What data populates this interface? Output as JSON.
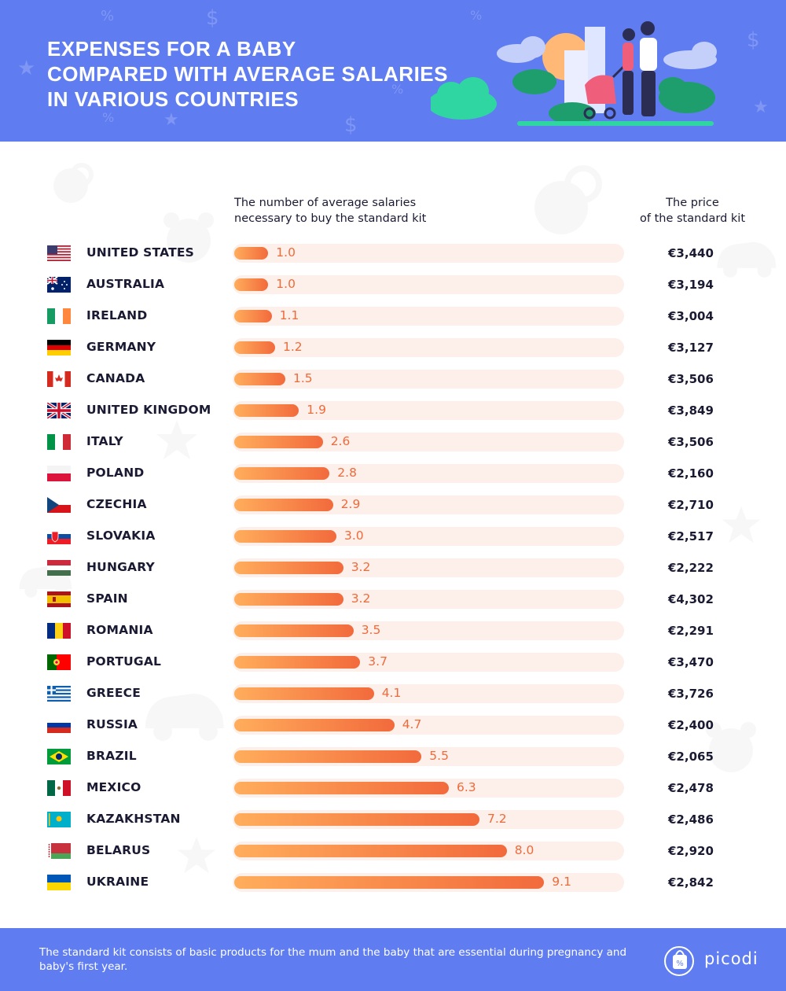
{
  "header": {
    "title_lines": [
      "EXPENSES FOR A BABY",
      "COMPARED WITH AVERAGE SALARIES",
      "IN VARIOUS COUNTRIES"
    ],
    "background_color": "#5f7df0"
  },
  "columns": {
    "salaries_header_lines": [
      "The number of average salaries",
      "necessary to buy the standard kit"
    ],
    "price_header_lines": [
      "The price",
      "of the standard kit"
    ]
  },
  "chart_data": {
    "type": "bar",
    "orientation": "horizontal",
    "title": "EXPENSES FOR A BABY COMPARED WITH AVERAGE SALARIES IN VARIOUS COUNTRIES",
    "categories": [
      "UNITED STATES",
      "AUSTRALIA",
      "IRELAND",
      "GERMANY",
      "CANADA",
      "UNITED KINGDOM",
      "ITALY",
      "POLAND",
      "CZECHIA",
      "SLOVAKIA",
      "HUNGARY",
      "SPAIN",
      "ROMANIA",
      "PORTUGAL",
      "GREECE",
      "RUSSIA",
      "BRAZIL",
      "MEXICO",
      "KAZAKHSTAN",
      "BELARUS",
      "UKRAINE"
    ],
    "values": [
      1.0,
      1.0,
      1.1,
      1.2,
      1.5,
      1.9,
      2.6,
      2.8,
      2.9,
      3.0,
      3.2,
      3.2,
      3.5,
      3.7,
      4.1,
      4.7,
      5.5,
      6.3,
      7.2,
      8.0,
      9.1
    ],
    "value_labels": [
      "1.0",
      "1.0",
      "1.1",
      "1.2",
      "1.5",
      "1.9",
      "2.6",
      "2.8",
      "2.9",
      "3.0",
      "3.2",
      "3.2",
      "3.5",
      "3.7",
      "4.1",
      "4.7",
      "5.5",
      "6.3",
      "7.2",
      "8.0",
      "9.1"
    ],
    "prices": [
      "€3,440",
      "€3,194",
      "€3,004",
      "€3,127",
      "€3,506",
      "€3,849",
      "€3,506",
      "€2,160",
      "€2,710",
      "€2,517",
      "€2,222",
      "€4,302",
      "€2,291",
      "€3,470",
      "€3,726",
      "€2,400",
      "€2,065",
      "€2,478",
      "€2,486",
      "€2,920",
      "€2,842"
    ],
    "xlim": [
      0,
      11.4
    ],
    "bar_gradient": [
      "#ffad5c",
      "#f26a3c"
    ],
    "track_color": "#fdf0ea",
    "value_color": "#f06a3a",
    "grid": false
  },
  "flags": [
    "us",
    "au",
    "ie",
    "de",
    "ca",
    "gb",
    "it",
    "pl",
    "cz",
    "sk",
    "hu",
    "es",
    "ro",
    "pt",
    "gr",
    "ru",
    "br",
    "mx",
    "kz",
    "by",
    "ua"
  ],
  "footer": {
    "note": "The standard kit consists of basic products for the mum and the baby that are essential during pregnancy and baby's first year.",
    "brand": "picodi",
    "background_color": "#5f7df0"
  }
}
